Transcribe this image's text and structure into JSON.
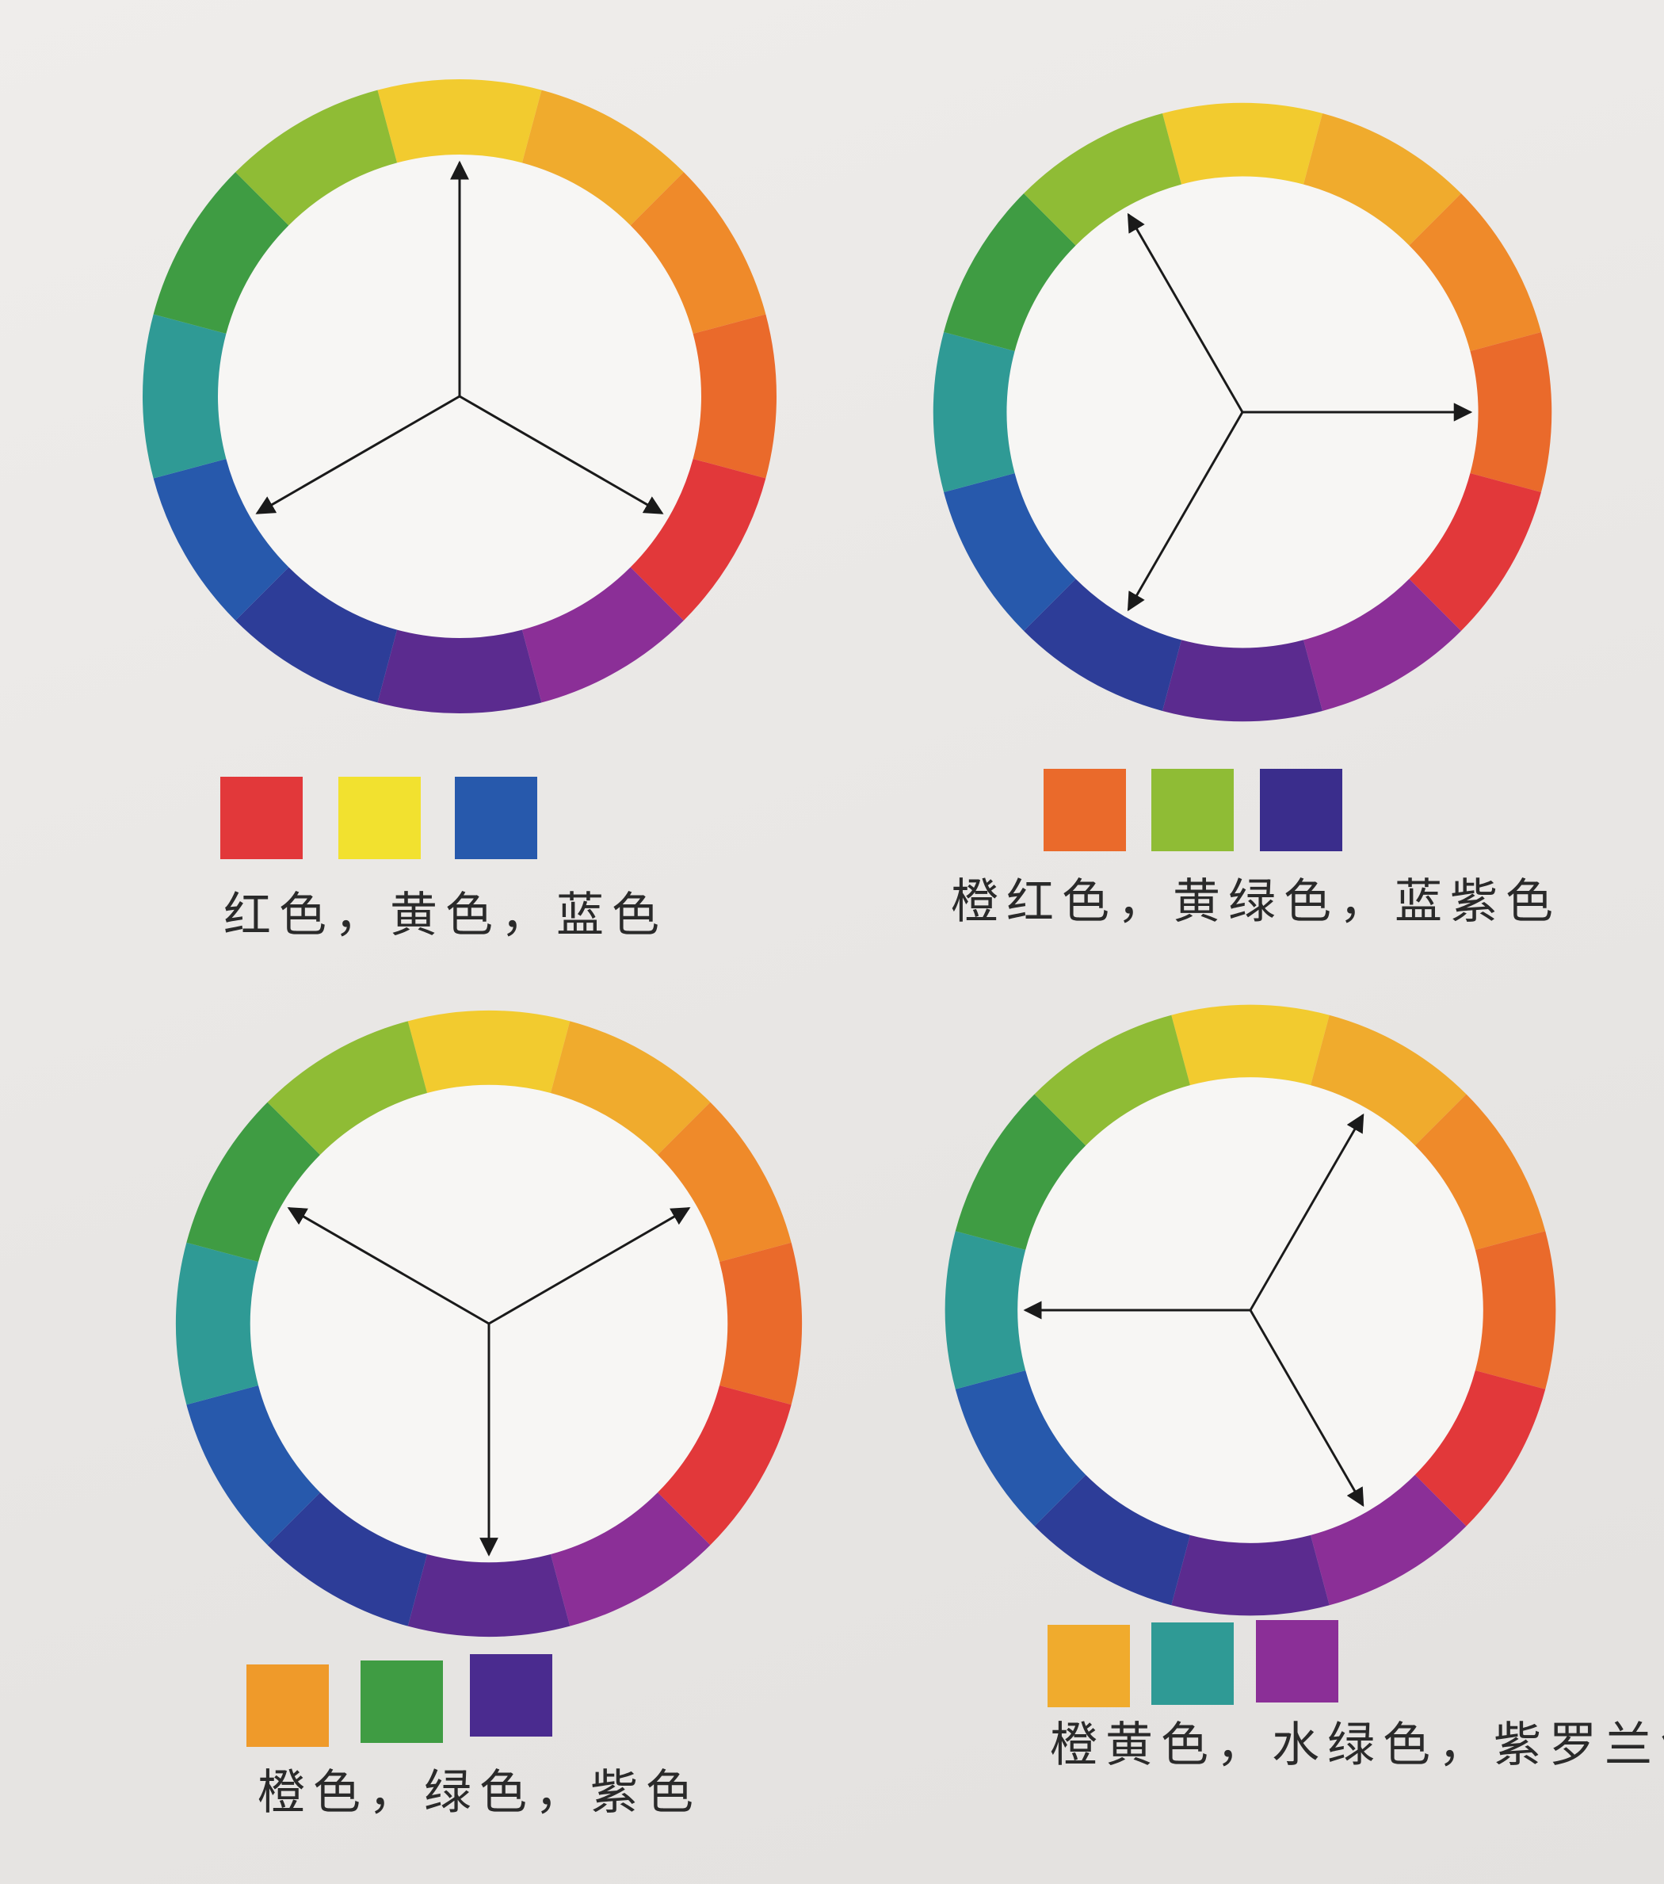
{
  "ring_colors": [
    "#f2cb2f",
    "#f0ab2d",
    "#ef8a2a",
    "#ea6a2b",
    "#e2383a",
    "#8b2f97",
    "#5b2b8f",
    "#2d3d98",
    "#2759ac",
    "#2f9a95",
    "#3f9c43",
    "#8fbc35"
  ],
  "panels": [
    {
      "caption": "红色，黄色，蓝色",
      "swatches": [
        "#e2383a",
        "#f2e12f",
        "#2759ac"
      ],
      "arrow_angles_deg": [
        0,
        120,
        240
      ]
    },
    {
      "caption": "橙红色，黄绿色，蓝紫色",
      "swatches": [
        "#ea6a2b",
        "#8fbc35",
        "#3a2d8c"
      ],
      "arrow_angles_deg": [
        -30,
        90,
        210
      ]
    },
    {
      "caption": "橙色，绿色，紫色",
      "swatches": [
        "#ef9a2a",
        "#3f9c43",
        "#4a2b8f"
      ],
      "arrow_angles_deg": [
        60,
        180,
        300
      ]
    },
    {
      "caption": "橙黄色，水绿色，紫罗兰色",
      "swatches": [
        "#f0ab2d",
        "#2f9a95",
        "#8b2f97"
      ],
      "arrow_angles_deg": [
        30,
        150,
        270
      ]
    }
  ]
}
